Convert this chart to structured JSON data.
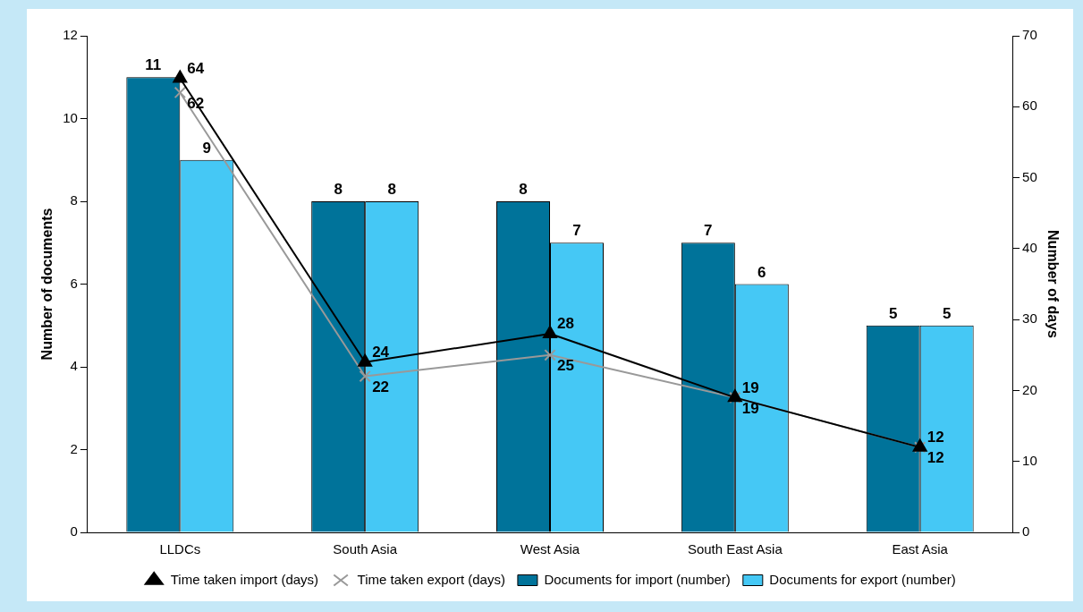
{
  "chart_data": {
    "type": "bar",
    "ylabel": "Number of documents",
    "y2label": "Number of days",
    "categories": [
      "LLDCs",
      "South Asia",
      "West Asia",
      "South East Asia",
      "East Asia"
    ],
    "series": [
      {
        "name": "Documents for import (number)",
        "color": "#00739a",
        "values": [
          11,
          8,
          8,
          7,
          5
        ]
      },
      {
        "name": "Documents for export (number)",
        "color": "#45c8f5",
        "values": [
          9,
          8,
          7,
          6,
          5
        ]
      },
      {
        "name": "Time taken import (days)",
        "type": "line",
        "axis": "y2",
        "marker": "triangle",
        "color": "#000000",
        "values": [
          64,
          24,
          28,
          19,
          12
        ]
      },
      {
        "name": "Time taken export (days)",
        "type": "line",
        "axis": "y2",
        "marker": "cross",
        "color": "#999999",
        "values": [
          62,
          22,
          25,
          19,
          12
        ]
      }
    ],
    "ylim": [
      0,
      12
    ],
    "yticks": [
      0,
      2,
      4,
      6,
      8,
      10,
      12
    ],
    "y2lim": [
      0,
      70
    ],
    "y2ticks": [
      0,
      10,
      20,
      30,
      40,
      50,
      60,
      70
    ],
    "data_labels": true,
    "legend": "bottom",
    "grid": false,
    "line_style": "solid"
  }
}
